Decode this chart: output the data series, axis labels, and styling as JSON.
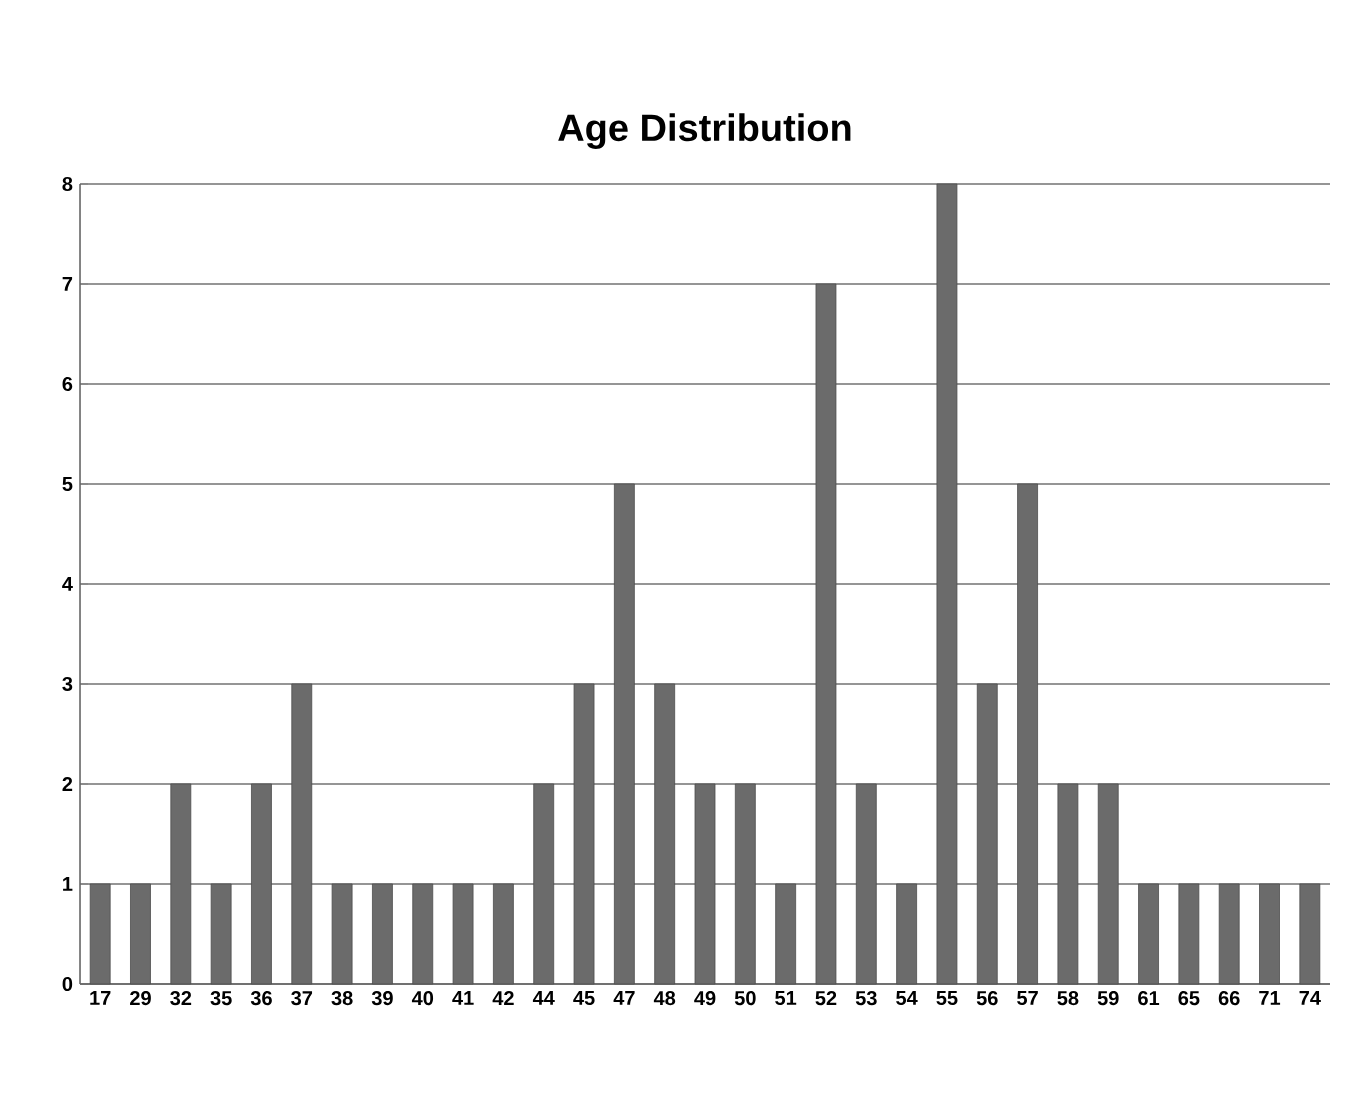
{
  "chart_data": {
    "type": "bar",
    "title": "Age Distribution",
    "categories": [
      "17",
      "29",
      "32",
      "35",
      "36",
      "37",
      "38",
      "39",
      "40",
      "41",
      "42",
      "44",
      "45",
      "47",
      "48",
      "49",
      "50",
      "51",
      "52",
      "53",
      "54",
      "55",
      "56",
      "57",
      "58",
      "59",
      "61",
      "65",
      "66",
      "71",
      "74"
    ],
    "values": [
      1,
      1,
      2,
      1,
      2,
      3,
      1,
      1,
      1,
      1,
      1,
      2,
      3,
      5,
      3,
      2,
      2,
      1,
      7,
      2,
      1,
      8,
      3,
      5,
      2,
      2,
      1,
      1,
      1,
      1,
      1
    ],
    "color": "#6b6b6b",
    "ylim": [
      0,
      8
    ],
    "yticks": [
      0,
      1,
      2,
      3,
      4,
      5,
      6,
      7,
      8
    ],
    "grid": "y"
  }
}
